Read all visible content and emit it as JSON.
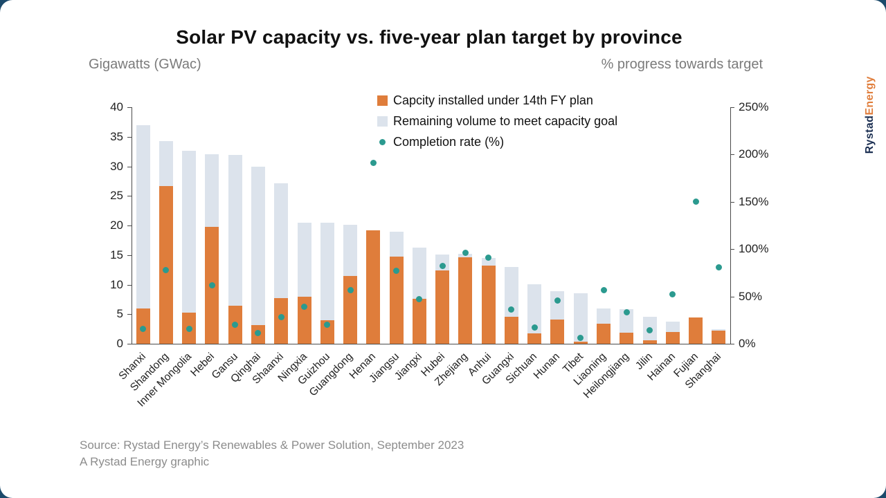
{
  "title": "Solar PV capacity vs. five-year plan target by province",
  "subtitles": {
    "left": "Gigawatts (GWac)",
    "right": "% progress towards target"
  },
  "colors": {
    "installed": "#DF7D3B",
    "remaining": "#DCE3EC",
    "completion": "#2B9A8F",
    "logo_navy": "#1b2f52",
    "logo_orange": "#e07e3c",
    "page_background": "#1c4a6b"
  },
  "logo": {
    "word1": "Rystad",
    "word2": "Energy"
  },
  "source": {
    "line1": "Source: Rystad Energy’s Renewables & Power Solution, September 2023",
    "line2": "A Rystad Energy graphic"
  },
  "chart_data": {
    "type": "bar",
    "overlay": "scatter",
    "stacked": true,
    "grid": false,
    "legend_position": "top-center",
    "title": "Solar PV capacity vs. five-year plan target by province",
    "ylabel_left": "Gigawatts (GWac)",
    "ylabel_right": "% progress towards target",
    "ylim_left": [
      0,
      40
    ],
    "ylim_right": [
      0,
      250
    ],
    "y_ticks_left": [
      0,
      5,
      10,
      15,
      20,
      25,
      30,
      35,
      40
    ],
    "y_ticks_right_labels": [
      "0%",
      "50%",
      "100%",
      "150%",
      "200%",
      "250%"
    ],
    "y_ticks_right_values": [
      0,
      50,
      100,
      150,
      200,
      250
    ],
    "categories": [
      "Shanxi",
      "Shandong",
      "Inner Mongolia",
      "Hebei",
      "Gansu",
      "Qinghai",
      "Shaanxi",
      "Ningxia",
      "Guizhou",
      "Guangdong",
      "Henan",
      "Jiangsu",
      "Jiangxi",
      "Hubei",
      "Zhejiang",
      "Anhui",
      "Guangxi",
      "Sichuan",
      "Hunan",
      "Tibet",
      "Liaoning",
      "Heilongjiang",
      "Jilin",
      "Hainan",
      "Fujian",
      "Shanghai"
    ],
    "series": [
      {
        "name": "Capcity installed under 14th FY plan",
        "kind": "bar",
        "axis": "left",
        "color": "#DF7D3B",
        "values": [
          6.0,
          26.7,
          5.3,
          19.8,
          6.4,
          3.2,
          7.7,
          7.9,
          4.0,
          11.5,
          19.2,
          14.7,
          7.6,
          12.4,
          14.6,
          13.2,
          4.6,
          1.7,
          4.1,
          0.4,
          3.4,
          1.9,
          0.6,
          2.0,
          4.5,
          2.2
        ]
      },
      {
        "name": "Remaining volume to meet capacity goal",
        "kind": "bar",
        "axis": "left",
        "color": "#DCE3EC",
        "values": [
          31.0,
          7.6,
          27.3,
          12.3,
          25.5,
          26.8,
          19.4,
          12.6,
          16.5,
          8.6,
          0.0,
          4.3,
          8.6,
          2.7,
          0.6,
          1.3,
          8.4,
          8.4,
          4.8,
          8.1,
          2.6,
          4.0,
          4.0,
          1.8,
          0.0,
          0.2
        ]
      },
      {
        "name": "Completion rate (%)",
        "kind": "scatter",
        "axis": "right",
        "color": "#2B9A8F",
        "values": [
          16,
          78,
          16,
          62,
          20,
          11,
          28,
          39,
          20,
          57,
          191,
          77,
          47,
          82,
          96,
          91,
          36,
          17,
          46,
          6,
          57,
          33,
          14,
          52,
          150,
          81
        ]
      }
    ]
  }
}
